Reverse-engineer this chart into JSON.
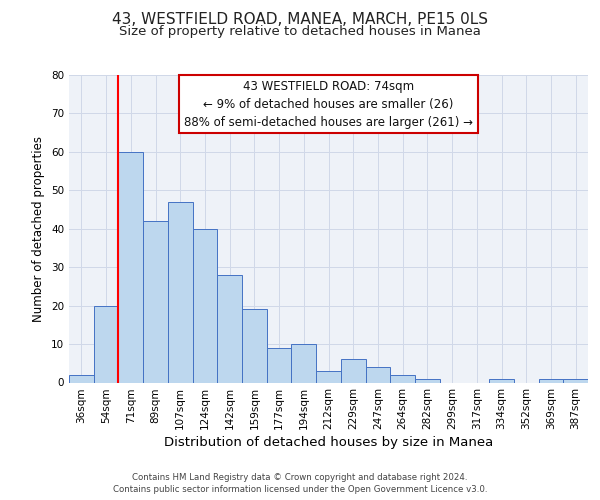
{
  "title": "43, WESTFIELD ROAD, MANEA, MARCH, PE15 0LS",
  "subtitle": "Size of property relative to detached houses in Manea",
  "xlabel": "Distribution of detached houses by size in Manea",
  "ylabel": "Number of detached properties",
  "bar_labels": [
    "36sqm",
    "54sqm",
    "71sqm",
    "89sqm",
    "107sqm",
    "124sqm",
    "142sqm",
    "159sqm",
    "177sqm",
    "194sqm",
    "212sqm",
    "229sqm",
    "247sqm",
    "264sqm",
    "282sqm",
    "299sqm",
    "317sqm",
    "334sqm",
    "352sqm",
    "369sqm",
    "387sqm"
  ],
  "bar_values": [
    2,
    20,
    60,
    42,
    47,
    40,
    28,
    19,
    9,
    10,
    3,
    6,
    4,
    2,
    1,
    0,
    0,
    1,
    0,
    1,
    1
  ],
  "bar_color": "#bdd7ee",
  "bar_edge_color": "#4472c4",
  "vline_color": "#ff0000",
  "vline_x_index": 2,
  "annotation_line1": "43 WESTFIELD ROAD: 74sqm",
  "annotation_line2": "← 9% of detached houses are smaller (26)",
  "annotation_line3": "88% of semi-detached houses are larger (261) →",
  "annotation_box_color": "#ffffff",
  "annotation_box_edgecolor": "#cc0000",
  "ylim": [
    0,
    80
  ],
  "yticks": [
    0,
    10,
    20,
    30,
    40,
    50,
    60,
    70,
    80
  ],
  "grid_color": "#d0d8e8",
  "bg_color": "#eef2f8",
  "title_fontsize": 11,
  "subtitle_fontsize": 9.5,
  "xlabel_fontsize": 9.5,
  "ylabel_fontsize": 8.5,
  "tick_fontsize": 7.5,
  "annotation_fontsize": 8.5,
  "footer_line1": "Contains HM Land Registry data © Crown copyright and database right 2024.",
  "footer_line2": "Contains public sector information licensed under the Open Government Licence v3.0."
}
